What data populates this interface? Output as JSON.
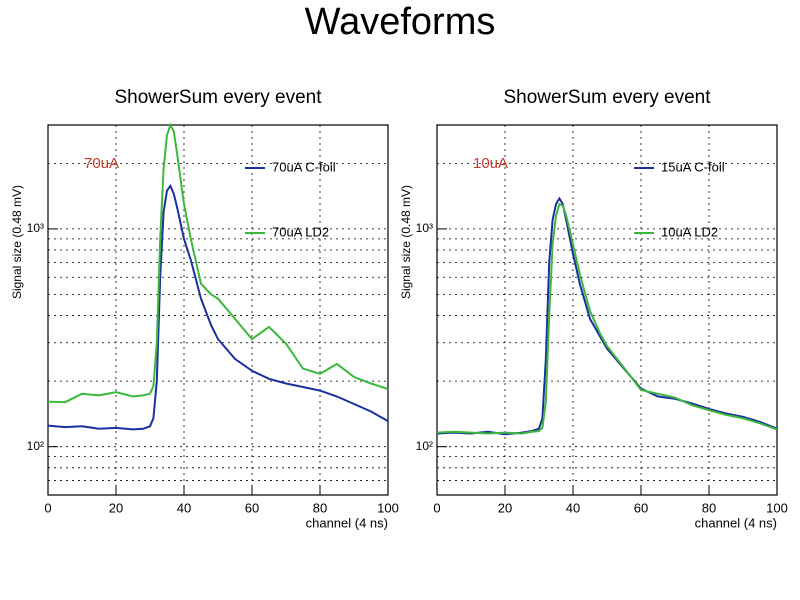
{
  "title": "Waveforms",
  "chart_data": [
    {
      "type": "line",
      "title": "ShowerSum every event",
      "xlabel": "channel (4 ns)",
      "ylabel": "Signal size (0.48 mV)",
      "annotation": "70uA",
      "annotation_color": "#c0392b",
      "log_y": true,
      "grid": true,
      "legend": "upper right",
      "x": [
        0,
        5,
        10,
        15,
        20,
        25,
        28,
        30,
        31,
        32,
        33,
        34,
        35,
        36,
        37,
        38,
        40,
        42,
        45,
        48,
        50,
        55,
        60,
        65,
        70,
        75,
        80,
        85,
        90,
        95,
        100
      ],
      "series": [
        {
          "name": "70uA C-foil",
          "color": "#1a2fa0",
          "values": [
            125,
            123,
            124,
            121,
            122,
            120,
            121,
            124,
            135,
            200,
            600,
            1200,
            1500,
            1575,
            1450,
            1250,
            900,
            720,
            478,
            360,
            312,
            253,
            223,
            205,
            195,
            188,
            181,
            170,
            157,
            145,
            131
          ]
        },
        {
          "name": "70uA LD2",
          "color": "#3cb83c",
          "values": [
            161,
            160,
            175,
            172,
            178,
            170,
            172,
            175,
            190,
            300,
            900,
            1900,
            2700,
            3000,
            2800,
            2200,
            1300,
            900,
            560,
            500,
            478,
            386,
            312,
            355,
            297,
            228,
            216,
            240,
            209,
            195,
            184
          ]
        }
      ],
      "xlim": [
        0,
        100
      ],
      "xticks": [
        0,
        20,
        40,
        60,
        80,
        100
      ],
      "ylim": [
        60,
        3000
      ],
      "yticks": [
        {
          "value": 100,
          "label": "10²"
        },
        {
          "value": 1000,
          "label": "10³"
        }
      ]
    },
    {
      "type": "line",
      "title": "ShowerSum every event",
      "xlabel": "channel (4 ns)",
      "ylabel": "Signal size (0.48 mV)",
      "annotation": "10uA",
      "annotation_color": "#c0392b",
      "log_y": true,
      "grid": true,
      "legend": "upper right",
      "x": [
        0,
        5,
        10,
        15,
        20,
        25,
        28,
        30,
        31,
        32,
        33,
        34,
        35,
        36,
        37,
        38,
        40,
        42,
        45,
        48,
        50,
        55,
        60,
        65,
        70,
        75,
        80,
        85,
        90,
        95,
        100
      ],
      "series": [
        {
          "name": "15uA C-foil",
          "color": "#1a2fa0",
          "values": [
            115,
            116,
            115,
            117,
            114,
            116,
            118,
            121,
            135,
            250,
            700,
            1100,
            1300,
            1380,
            1300,
            1100,
            768,
            560,
            386,
            320,
            282,
            228,
            185,
            170,
            166,
            158,
            149,
            142,
            137,
            130,
            121
          ]
        },
        {
          "name": "10uA LD2",
          "color": "#3cb83c",
          "values": [
            116,
            117,
            116,
            115,
            116,
            115,
            117,
            118,
            122,
            160,
            400,
            850,
            1150,
            1300,
            1280,
            1150,
            850,
            620,
            420,
            330,
            290,
            230,
            182,
            175,
            168,
            155,
            147,
            140,
            135,
            128,
            120
          ]
        }
      ],
      "xlim": [
        0,
        100
      ],
      "xticks": [
        0,
        20,
        40,
        60,
        80,
        100
      ],
      "ylim": [
        60,
        3000
      ],
      "yticks": [
        {
          "value": 100,
          "label": "10²"
        },
        {
          "value": 1000,
          "label": "10³"
        }
      ]
    }
  ]
}
